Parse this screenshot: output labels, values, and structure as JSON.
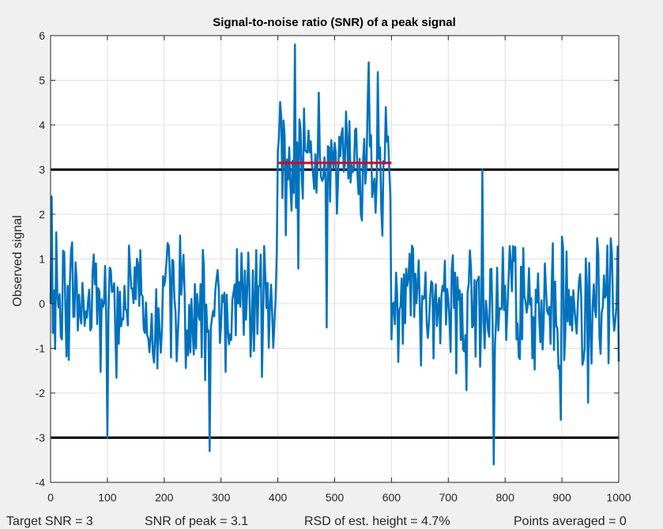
{
  "chart_data": {
    "type": "line",
    "title": "Signal-to-noise ratio (SNR) of a peak signal",
    "xlabel": "",
    "ylabel": "Observed signal",
    "xlim": [
      0,
      1000
    ],
    "ylim": [
      -4,
      6
    ],
    "grid": true,
    "x_ticks": [
      "0",
      "100",
      "200",
      "300",
      "400",
      "500",
      "600",
      "700",
      "800",
      "900",
      "1000"
    ],
    "y_ticks": [
      "6",
      "5",
      "4",
      "3",
      "2",
      "1",
      "0",
      "-1",
      "-2",
      "-3",
      "-4"
    ],
    "reference_lines": [
      {
        "y": 3,
        "x_range": [
          0,
          1000
        ],
        "color": "#000000"
      },
      {
        "y": -3,
        "x_range": [
          0,
          1000
        ],
        "color": "#000000"
      },
      {
        "y": 3.15,
        "x_range": [
          400,
          600
        ],
        "color": "#e3001b"
      }
    ],
    "series": [
      {
        "color": "#0072bd",
        "x_step": 10,
        "x_start": 0,
        "values": [
          0.0,
          1.6,
          -0.8,
          0.4,
          -0.3,
          0.2,
          -0.5,
          -0.6,
          0.9,
          0.1,
          -3.0,
          0.3,
          -0.9,
          0.4,
          0.8,
          0.1,
          0.2,
          -0.7,
          -1.1,
          -0.1,
          0.4,
          0.6,
          -0.2,
          0.2,
          -0.6,
          -0.6,
          -0.2,
          0.8,
          -3.3,
          0.3,
          -0.5,
          0.2,
          0.1,
          0.0,
          -0.7,
          0.4,
          0.1,
          1.1,
          -0.1,
          -0.2,
          3.4,
          4.1,
          3.5,
          5.8,
          3.9,
          3.4,
          3.1,
          3.2,
          2.8,
          3.5,
          3.6,
          3.3,
          4.3,
          3.1,
          2.9,
          3.2,
          5.4,
          2.8,
          3.5,
          4.4,
          -0.8,
          0.2,
          -0.9,
          0.6,
          -0.3,
          -0.2,
          0.7,
          0.5,
          -0.5,
          0.4,
          0.1,
          -0.1,
          0.3,
          -0.7,
          0.8,
          0.5,
          3.0,
          -0.6,
          -3.6,
          -0.1,
          0.4,
          0.9,
          -0.8,
          -0.8,
          0.0,
          -0.3,
          -0.3,
          0.9,
          -0.9,
          -0.5,
          1.5,
          -0.4,
          0.3,
          0.5,
          -1.0,
          -0.5,
          -0.3,
          -0.2,
          1.3,
          -0.2,
          -1.3
        ]
      }
    ]
  },
  "footer": {
    "target_snr": "Target SNR = 3",
    "snr_peak": "SNR of peak = 3.1",
    "rsd": "RSD of est. height = 4.7%",
    "points_averaged": "Points averaged = 0"
  }
}
